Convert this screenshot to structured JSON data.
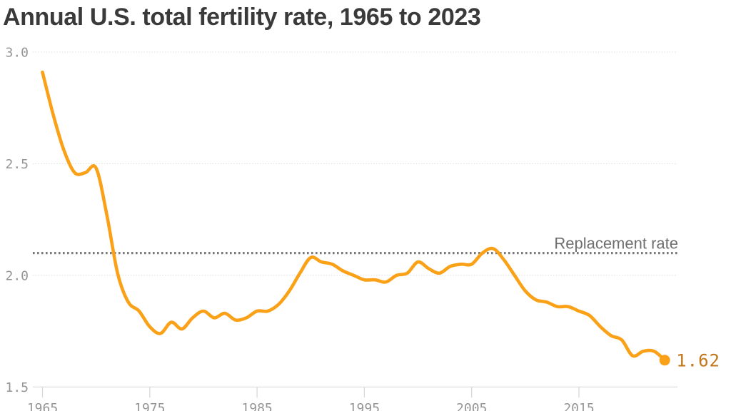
{
  "title": "Annual U.S. total fertility rate, 1965 to 2023",
  "colors": {
    "line": "#FAA117",
    "end_dot": "#FAA117",
    "end_label": "#C2761A",
    "annotation_line": "#7a7a7a",
    "annotation_text": "#6e6e6e",
    "grid": "#dcdcdc",
    "axis": "#d9d9d9",
    "tick_text": "#959595",
    "title_text": "#3a3a3a"
  },
  "chart_data": {
    "type": "line",
    "title": "Annual U.S. total fertility rate, 1965 to 2023",
    "series_name": "U.S. total fertility rate",
    "x": [
      1965,
      1966,
      1967,
      1968,
      1969,
      1970,
      1971,
      1972,
      1973,
      1974,
      1975,
      1976,
      1977,
      1978,
      1979,
      1980,
      1981,
      1982,
      1983,
      1984,
      1985,
      1986,
      1987,
      1988,
      1989,
      1990,
      1991,
      1992,
      1993,
      1994,
      1995,
      1996,
      1997,
      1998,
      1999,
      2000,
      2001,
      2002,
      2003,
      2004,
      2005,
      2006,
      2007,
      2008,
      2009,
      2010,
      2011,
      2012,
      2013,
      2014,
      2015,
      2016,
      2017,
      2018,
      2019,
      2020,
      2021,
      2022,
      2023
    ],
    "values": [
      2.91,
      2.72,
      2.56,
      2.46,
      2.46,
      2.48,
      2.27,
      2.01,
      1.88,
      1.84,
      1.77,
      1.74,
      1.79,
      1.76,
      1.81,
      1.84,
      1.81,
      1.83,
      1.8,
      1.81,
      1.84,
      1.84,
      1.87,
      1.93,
      2.01,
      2.08,
      2.06,
      2.05,
      2.02,
      2.0,
      1.98,
      1.98,
      1.97,
      2.0,
      2.01,
      2.06,
      2.03,
      2.01,
      2.04,
      2.05,
      2.05,
      2.1,
      2.12,
      2.07,
      2.0,
      1.93,
      1.89,
      1.88,
      1.86,
      1.86,
      1.84,
      1.82,
      1.77,
      1.73,
      1.71,
      1.64,
      1.66,
      1.66,
      1.62
    ],
    "xlim": [
      1965,
      2023
    ],
    "ylim": [
      1.5,
      3.0
    ],
    "x_ticks": [
      1965,
      1975,
      1985,
      1995,
      2005,
      2015
    ],
    "x_tick_labels": [
      "1965",
      "1975",
      "1985",
      "1995",
      "2005",
      "2015"
    ],
    "y_ticks": [
      3.0,
      2.5,
      2.0,
      1.5
    ],
    "y_tick_labels": [
      "3.0",
      "2.5",
      "2.0",
      "1.5"
    ],
    "grid": "horizontal",
    "legend": "none",
    "annotation": {
      "label": "Replacement rate",
      "value": 2.1
    },
    "end_point": {
      "x": 2023,
      "value": 1.62,
      "label": "1.62"
    }
  }
}
